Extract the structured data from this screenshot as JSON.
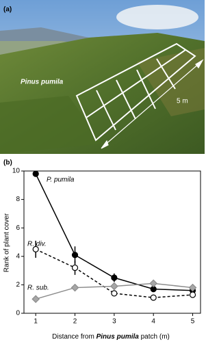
{
  "figure_a": {
    "panel_label": "(a)",
    "plant_label": "Pinus pumila",
    "scale_label": "5 m"
  },
  "chart_data": {
    "type": "line",
    "panel_label": "(b)",
    "y_label": "Rank of plant cover",
    "x_label_parts": [
      "Distance from ",
      "Pinus pumila",
      " patch (m)"
    ],
    "x": [
      1,
      2,
      3,
      4,
      5
    ],
    "xlim": [
      0.7,
      5.2
    ],
    "xticks": [
      1,
      2,
      3,
      4,
      5
    ],
    "ylim": [
      0,
      10
    ],
    "yticks": [
      0,
      2,
      4,
      6,
      8,
      10
    ],
    "series": [
      {
        "name": "P. pumila",
        "color": "#000000",
        "marker_fill": "#000000",
        "marker": "circle",
        "dashed": false,
        "values": [
          9.8,
          4.1,
          2.5,
          1.7,
          1.6
        ],
        "errors": [
          0.15,
          0.6,
          0.3,
          0.15,
          0.1
        ]
      },
      {
        "name": "R. div.",
        "color": "#000000",
        "marker_fill": "#ffffff",
        "marker": "circle",
        "dashed": true,
        "values": [
          4.5,
          3.2,
          1.4,
          1.1,
          1.3
        ],
        "errors": [
          0.6,
          0.5,
          0.1,
          0.1,
          0.1
        ]
      },
      {
        "name": "R. sub.",
        "color": "#8c8c8c",
        "marker_fill": "#a6a6a6",
        "marker": "diamond",
        "dashed": false,
        "values": [
          1.0,
          1.8,
          1.9,
          2.1,
          1.8
        ],
        "errors": [
          0.1,
          0.2,
          0.2,
          0.2,
          0.1
        ]
      }
    ]
  }
}
